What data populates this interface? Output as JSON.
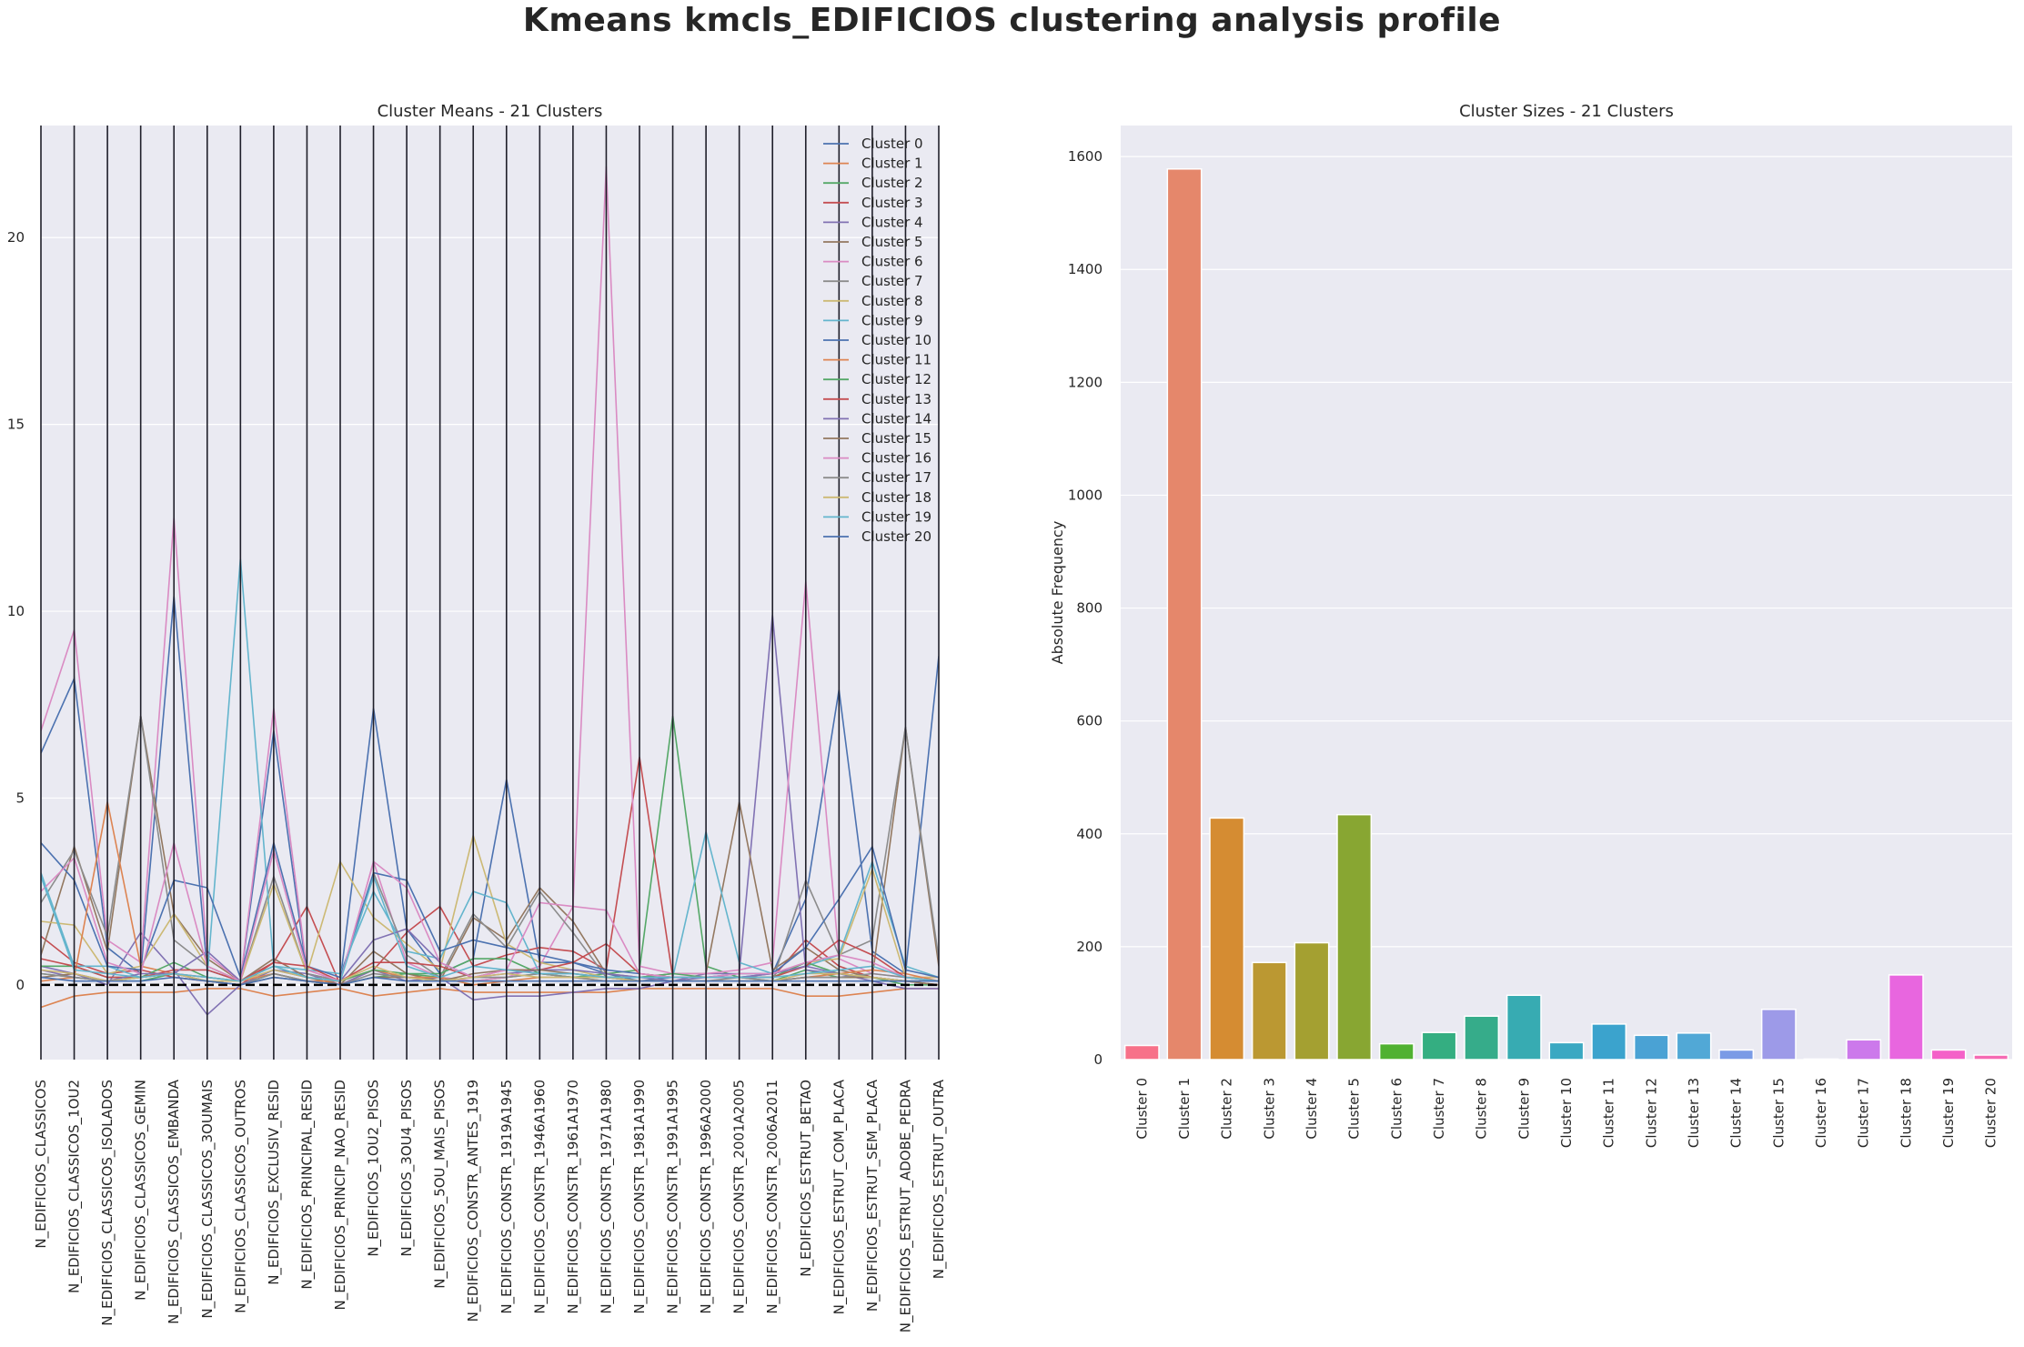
{
  "title": "Kmeans  kmcls_EDIFICIOS clustering analysis profile",
  "chart_data": [
    {
      "type": "line",
      "title": "Cluster Means - 21 Clusters",
      "xlabel": "",
      "ylabel": "",
      "ylim": [
        -2.0,
        23.0
      ],
      "yticks": [
        0,
        5,
        10,
        15,
        20
      ],
      "grid": true,
      "legend_position": "top-right",
      "reference_line": 0,
      "x": [
        "N_EDIFICIOS_CLASSICOS",
        "N_EDIFICIOS_CLASSICOS_1OU2",
        "N_EDIFICIOS_CLASSICOS_ISOLADOS",
        "N_EDIFICIOS_CLASSICOS_GEMIN",
        "N_EDIFICIOS_CLASSICOS_EMBANDA",
        "N_EDIFICIOS_CLASSICOS_3OUMAIS",
        "N_EDIFICIOS_CLASSICOS_OUTROS",
        "N_EDIFICIOS_EXCLUSIV_RESID",
        "N_EDIFICIOS_PRINCIPAL_RESID",
        "N_EDIFICIOS_PRINCIP_NAO_RESID",
        "N_EDIFICIOS_1OU2_PISOS",
        "N_EDIFICIOS_3OU4_PISOS",
        "N_EDIFICIOS_5OU_MAIS_PISOS",
        "N_EDIFICIOS_CONSTR_ANTES_1919",
        "N_EDIFICIOS_CONSTR_1919A1945",
        "N_EDIFICIOS_CONSTR_1946A1960",
        "N_EDIFICIOS_CONSTR_1961A1970",
        "N_EDIFICIOS_CONSTR_1971A1980",
        "N_EDIFICIOS_CONSTR_1981A1990",
        "N_EDIFICIOS_CONSTR_1991A1995",
        "N_EDIFICIOS_CONSTR_1996A2000",
        "N_EDIFICIOS_CONSTR_2001A2005",
        "N_EDIFICIOS_CONSTR_2006A2011",
        "N_EDIFICIOS_ESTRUT_BETAO",
        "N_EDIFICIOS_ESTRUT_COM_PLACA",
        "N_EDIFICIOS_ESTRUT_SEM_PLACA",
        "N_EDIFICIOS_ESTRUT_ADOBE_PEDRA",
        "N_EDIFICIOS_ESTRUT_OUTRA"
      ],
      "series": [
        {
          "name": "Cluster 0",
          "color": "#4c72b0",
          "values": [
            6.2,
            8.2,
            1.0,
            0.3,
            10.4,
            0.4,
            0.1,
            6.8,
            0.3,
            0.1,
            7.4,
            1.5,
            0.3,
            0.7,
            5.5,
            0.6,
            0.6,
            0.3,
            0.1,
            0.2,
            0.2,
            0.3,
            0.3,
            2.3,
            7.9,
            0.9,
            0.3,
            8.8
          ]
        },
        {
          "name": "Cluster 1",
          "color": "#dd8452",
          "values": [
            -0.6,
            -0.3,
            -0.2,
            -0.2,
            -0.2,
            -0.1,
            -0.1,
            -0.3,
            -0.2,
            -0.1,
            -0.3,
            -0.2,
            -0.1,
            -0.2,
            -0.2,
            -0.2,
            -0.2,
            -0.2,
            -0.1,
            -0.1,
            -0.1,
            -0.1,
            -0.1,
            -0.3,
            -0.3,
            -0.2,
            -0.1,
            -0.1
          ]
        },
        {
          "name": "Cluster 2",
          "color": "#55a868",
          "values": [
            0.3,
            0.2,
            0.1,
            0.1,
            0.3,
            0.1,
            0.0,
            0.3,
            0.1,
            0.0,
            0.2,
            0.3,
            0.2,
            0.1,
            0.2,
            0.3,
            0.2,
            0.3,
            0.4,
            7.2,
            0.5,
            0.2,
            0.1,
            0.4,
            0.2,
            0.2,
            0.0,
            0.0
          ]
        },
        {
          "name": "Cluster 3",
          "color": "#c44e52",
          "values": [
            1.3,
            0.6,
            0.3,
            0.4,
            0.2,
            0.1,
            0.0,
            0.6,
            2.1,
            0.0,
            0.4,
            1.4,
            2.1,
            0.5,
            0.8,
            1.0,
            0.9,
            0.4,
            6.1,
            0.2,
            0.2,
            0.2,
            0.2,
            1.2,
            0.5,
            0.2,
            0.1,
            0.0
          ]
        },
        {
          "name": "Cluster 4",
          "color": "#8172b3",
          "values": [
            0.5,
            0.3,
            0.0,
            1.4,
            0.4,
            -0.8,
            0.0,
            0.4,
            0.3,
            0.0,
            0.4,
            0.1,
            0.2,
            -0.4,
            -0.3,
            -0.3,
            -0.2,
            -0.1,
            -0.1,
            0.1,
            0.3,
            0.3,
            9.9,
            0.4,
            0.3,
            0.1,
            -0.1,
            -0.1
          ]
        },
        {
          "name": "Cluster 5",
          "color": "#937860",
          "values": [
            0.8,
            3.7,
            0.9,
            7.2,
            1.9,
            0.7,
            0.1,
            0.7,
            0.2,
            0.0,
            0.9,
            0.3,
            0.1,
            1.8,
            1.2,
            2.6,
            1.7,
            0.3,
            0.2,
            0.3,
            0.3,
            4.9,
            0.4,
            1.0,
            0.4,
            0.2,
            6.9,
            0.5
          ]
        },
        {
          "name": "Cluster 6",
          "color": "#da8bc3",
          "values": [
            6.8,
            9.5,
            1.2,
            0.6,
            12.5,
            0.8,
            0.1,
            7.4,
            0.4,
            0.1,
            3.3,
            0.6,
            0.2,
            0.1,
            0.2,
            0.5,
            2.1,
            21.9,
            0.5,
            0.3,
            0.3,
            0.4,
            0.6,
            10.8,
            0.7,
            0.3,
            0.2,
            0.2
          ]
        },
        {
          "name": "Cluster 7",
          "color": "#8c8c8c",
          "values": [
            2.2,
            3.6,
            1.3,
            7.2,
            1.2,
            0.5,
            0.1,
            2.9,
            0.3,
            0.1,
            3.0,
            0.8,
            0.2,
            1.9,
            1.0,
            2.5,
            1.4,
            0.2,
            0.1,
            0.1,
            0.1,
            0.2,
            0.1,
            2.8,
            0.8,
            1.2,
            6.9,
            0.7
          ]
        },
        {
          "name": "Cluster 8",
          "color": "#ccb974",
          "values": [
            1.7,
            1.6,
            0.3,
            0.5,
            1.9,
            0.5,
            0.1,
            2.7,
            0.3,
            3.3,
            1.8,
            1.1,
            0.4,
            4.0,
            1.1,
            0.6,
            0.4,
            0.2,
            0.2,
            0.2,
            0.2,
            0.2,
            0.2,
            0.6,
            0.7,
            3.1,
            0.2,
            0.2
          ]
        },
        {
          "name": "Cluster 9",
          "color": "#64b5cd",
          "values": [
            3.0,
            0.5,
            0.5,
            0.2,
            0.3,
            0.2,
            11.4,
            0.5,
            0.4,
            0.3,
            2.5,
            0.9,
            0.7,
            2.5,
            2.2,
            0.3,
            0.3,
            0.2,
            0.2,
            0.2,
            4.1,
            0.6,
            0.3,
            0.5,
            0.8,
            3.3,
            0.5,
            0.2
          ]
        },
        {
          "name": "Cluster 10",
          "color": "#4c72b0",
          "values": [
            3.8,
            2.8,
            0.5,
            0.4,
            2.8,
            2.6,
            0.2,
            3.8,
            0.5,
            0.2,
            3.0,
            2.8,
            0.9,
            1.2,
            1.0,
            0.8,
            0.6,
            0.4,
            0.3,
            0.2,
            0.2,
            0.2,
            0.3,
            1.0,
            2.3,
            3.7,
            0.4,
            0.2
          ]
        },
        {
          "name": "Cluster 11",
          "color": "#dd8452",
          "values": [
            0.1,
            0.2,
            4.9,
            0.5,
            0.3,
            0.2,
            0.1,
            0.3,
            0.1,
            0.1,
            0.4,
            0.2,
            0.2,
            0.0,
            0.1,
            0.2,
            0.2,
            0.1,
            0.1,
            0.1,
            0.1,
            0.1,
            0.1,
            0.2,
            0.3,
            0.4,
            0.3,
            0.1
          ]
        },
        {
          "name": "Cluster 12",
          "color": "#55a868",
          "values": [
            0.5,
            0.5,
            0.2,
            0.2,
            0.6,
            0.2,
            0.1,
            0.5,
            0.2,
            0.1,
            0.4,
            0.3,
            0.3,
            0.7,
            0.7,
            0.3,
            0.2,
            0.2,
            0.2,
            0.3,
            0.2,
            0.2,
            0.2,
            0.6,
            0.3,
            0.2,
            0.1,
            0.1
          ]
        },
        {
          "name": "Cluster 13",
          "color": "#c44e52",
          "values": [
            0.7,
            0.5,
            0.2,
            0.2,
            0.4,
            0.4,
            0.1,
            0.6,
            0.5,
            0.1,
            0.6,
            0.6,
            0.5,
            0.2,
            0.4,
            0.4,
            0.6,
            1.1,
            0.3,
            0.2,
            0.2,
            0.2,
            0.2,
            0.5,
            1.2,
            0.8,
            0.2,
            0.1
          ]
        },
        {
          "name": "Cluster 14",
          "color": "#8172b3",
          "values": [
            0.4,
            0.2,
            0.1,
            0.3,
            0.3,
            0.9,
            0.1,
            0.4,
            0.2,
            0.1,
            1.2,
            1.5,
            0.6,
            0.2,
            0.3,
            0.4,
            0.4,
            0.3,
            0.2,
            0.1,
            0.2,
            0.2,
            0.3,
            0.5,
            0.3,
            0.2,
            0.1,
            0.1
          ]
        },
        {
          "name": "Cluster 15",
          "color": "#937860",
          "values": [
            0.2,
            0.3,
            0.1,
            0.2,
            0.3,
            0.1,
            0.0,
            0.2,
            0.1,
            0.0,
            0.2,
            0.2,
            0.1,
            0.3,
            0.4,
            0.4,
            0.3,
            0.2,
            0.1,
            0.1,
            0.1,
            0.1,
            0.1,
            0.2,
            0.2,
            0.2,
            0.1,
            0.0
          ]
        },
        {
          "name": "Cluster 16",
          "color": "#da8bc3",
          "values": [
            2.5,
            3.4,
            0.6,
            0.3,
            3.8,
            0.5,
            0.1,
            3.6,
            0.4,
            0.1,
            3.3,
            2.6,
            0.6,
            0.2,
            0.4,
            2.2,
            2.1,
            2.0,
            0.3,
            0.2,
            0.2,
            0.3,
            0.3,
            0.6,
            0.8,
            0.6,
            0.2,
            0.1
          ]
        },
        {
          "name": "Cluster 17",
          "color": "#8c8c8c",
          "values": [
            0.3,
            0.2,
            0.1,
            0.2,
            0.3,
            0.1,
            0.0,
            0.3,
            0.1,
            0.0,
            0.3,
            0.2,
            0.1,
            0.2,
            0.2,
            0.3,
            0.2,
            0.1,
            0.1,
            0.1,
            0.1,
            0.1,
            0.1,
            0.2,
            0.2,
            0.3,
            0.2,
            0.1
          ]
        },
        {
          "name": "Cluster 18",
          "color": "#ccb974",
          "values": [
            0.4,
            0.3,
            0.1,
            0.2,
            0.3,
            0.1,
            0.1,
            0.4,
            0.2,
            0.1,
            0.5,
            0.2,
            0.1,
            0.2,
            0.3,
            0.2,
            0.2,
            0.2,
            0.1,
            0.1,
            0.1,
            0.1,
            0.1,
            0.3,
            0.3,
            0.2,
            0.1,
            0.1
          ]
        },
        {
          "name": "Cluster 19",
          "color": "#64b5cd",
          "values": [
            2.9,
            0.4,
            0.3,
            0.2,
            0.3,
            0.2,
            0.1,
            0.5,
            0.2,
            0.1,
            2.9,
            0.5,
            0.2,
            0.5,
            0.4,
            0.3,
            0.3,
            0.2,
            0.2,
            0.2,
            0.2,
            0.2,
            0.2,
            0.3,
            0.4,
            0.5,
            0.2,
            0.1
          ]
        },
        {
          "name": "Cluster 20",
          "color": "#4c72b0",
          "values": [
            0.2,
            0.1,
            0.1,
            0.1,
            0.2,
            0.1,
            0.0,
            0.2,
            0.1,
            0.0,
            0.2,
            0.1,
            0.1,
            0.1,
            0.1,
            0.1,
            0.1,
            0.1,
            0.1,
            0.1,
            0.1,
            0.1,
            0.1,
            0.1,
            0.1,
            0.1,
            0.1,
            0.1
          ]
        }
      ]
    },
    {
      "type": "bar",
      "title": "Cluster Sizes - 21 Clusters",
      "xlabel": "",
      "ylabel": "Absolute Frequency",
      "ylim": [
        0,
        1655
      ],
      "yticks": [
        0,
        200,
        400,
        600,
        800,
        1000,
        1200,
        1400,
        1600
      ],
      "grid": true,
      "categories": [
        "Cluster 0",
        "Cluster 1",
        "Cluster 2",
        "Cluster 3",
        "Cluster 4",
        "Cluster 5",
        "Cluster 6",
        "Cluster 7",
        "Cluster 8",
        "Cluster 9",
        "Cluster 10",
        "Cluster 11",
        "Cluster 12",
        "Cluster 13",
        "Cluster 14",
        "Cluster 15",
        "Cluster 16",
        "Cluster 17",
        "Cluster 18",
        "Cluster 19",
        "Cluster 20"
      ],
      "values": [
        25,
        1578,
        428,
        172,
        207,
        434,
        28,
        48,
        77,
        114,
        30,
        63,
        43,
        47,
        17,
        89,
        1,
        35,
        150,
        17,
        8
      ],
      "colors": [
        "#f77189",
        "#e5876b",
        "#d58c32",
        "#bb9832",
        "#a4a031",
        "#88a632",
        "#50b131",
        "#34ae81",
        "#36ac8a",
        "#37abb2",
        "#3aa8c2",
        "#3ba3cd",
        "#4aa2d4",
        "#51a8d6",
        "#7a9be6",
        "#9d9ae8",
        "#b48cf2",
        "#cc79eb",
        "#e866df",
        "#f461c8",
        "#f56ab3"
      ]
    }
  ]
}
